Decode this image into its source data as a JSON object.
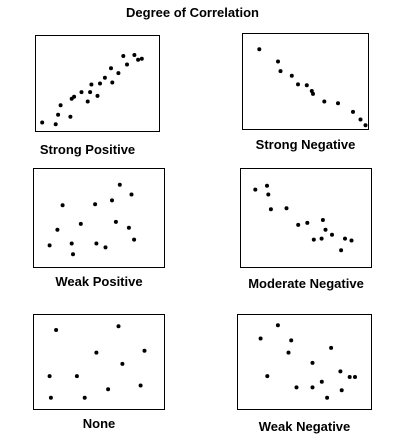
{
  "title": "Degree of Correlation",
  "chart_data": [
    {
      "type": "scatter",
      "title": "Strong Positive",
      "xlim": [
        0,
        100
      ],
      "ylim": [
        0,
        100
      ],
      "points": [
        [
          5,
          9
        ],
        [
          16,
          7
        ],
        [
          18,
          17
        ],
        [
          20,
          27
        ],
        [
          28,
          15
        ],
        [
          29,
          34
        ],
        [
          31,
          36
        ],
        [
          37,
          41
        ],
        [
          42,
          31
        ],
        [
          44,
          41
        ],
        [
          45,
          49
        ],
        [
          50,
          37
        ],
        [
          52,
          50
        ],
        [
          56,
          56
        ],
        [
          61,
          66
        ],
        [
          62,
          51
        ],
        [
          67,
          61
        ],
        [
          71,
          79
        ],
        [
          74,
          70
        ],
        [
          80,
          80
        ],
        [
          83,
          75
        ],
        [
          86,
          76
        ]
      ]
    },
    {
      "type": "scatter",
      "title": "Strong Negative",
      "xlim": [
        0,
        100
      ],
      "ylim": [
        0,
        100
      ],
      "points": [
        [
          13,
          84
        ],
        [
          28,
          71
        ],
        [
          30,
          61
        ],
        [
          39,
          56
        ],
        [
          44,
          47
        ],
        [
          51,
          46
        ],
        [
          55,
          40
        ],
        [
          56,
          37
        ],
        [
          65,
          29
        ],
        [
          76,
          27
        ],
        [
          88,
          18
        ],
        [
          94,
          10
        ],
        [
          98,
          4
        ]
      ]
    },
    {
      "type": "scatter",
      "title": "Weak Positive",
      "xlim": [
        0,
        100
      ],
      "ylim": [
        0,
        100
      ],
      "points": [
        [
          12,
          22
        ],
        [
          18,
          38
        ],
        [
          22,
          63
        ],
        [
          29,
          24
        ],
        [
          30,
          13
        ],
        [
          36,
          44
        ],
        [
          47,
          64
        ],
        [
          48,
          24
        ],
        [
          55,
          20
        ],
        [
          60,
          68
        ],
        [
          63,
          46
        ],
        [
          66,
          84
        ],
        [
          73,
          40
        ],
        [
          75,
          74
        ],
        [
          77,
          28
        ]
      ]
    },
    {
      "type": "scatter",
      "title": "Moderate Negative",
      "xlim": [
        0,
        100
      ],
      "ylim": [
        0,
        100
      ],
      "points": [
        [
          11,
          79
        ],
        [
          20,
          83
        ],
        [
          21,
          74
        ],
        [
          23,
          59
        ],
        [
          35,
          60
        ],
        [
          44,
          43
        ],
        [
          51,
          45
        ],
        [
          56,
          28
        ],
        [
          62,
          29
        ],
        [
          63,
          48
        ],
        [
          65,
          38
        ],
        [
          70,
          33
        ],
        [
          77,
          17
        ],
        [
          80,
          29
        ],
        [
          85,
          27
        ]
      ]
    },
    {
      "type": "scatter",
      "title": "None",
      "xlim": [
        0,
        100
      ],
      "ylim": [
        0,
        100
      ],
      "points": [
        [
          12,
          35
        ],
        [
          13,
          12
        ],
        [
          17,
          84
        ],
        [
          33,
          35
        ],
        [
          39,
          12
        ],
        [
          48,
          60
        ],
        [
          57,
          21
        ],
        [
          65,
          88
        ],
        [
          68,
          48
        ],
        [
          82,
          25
        ],
        [
          85,
          62
        ]
      ]
    },
    {
      "type": "scatter",
      "title": "Weak Negative",
      "xlim": [
        0,
        100
      ],
      "ylim": [
        0,
        100
      ],
      "points": [
        [
          17,
          75
        ],
        [
          22,
          35
        ],
        [
          30,
          89
        ],
        [
          38,
          60
        ],
        [
          40,
          73
        ],
        [
          44,
          23
        ],
        [
          56,
          23
        ],
        [
          56,
          49
        ],
        [
          63,
          29
        ],
        [
          67,
          12
        ],
        [
          70,
          65
        ],
        [
          77,
          40
        ],
        [
          78,
          20
        ],
        [
          84,
          34
        ],
        [
          88,
          34
        ]
      ]
    }
  ]
}
